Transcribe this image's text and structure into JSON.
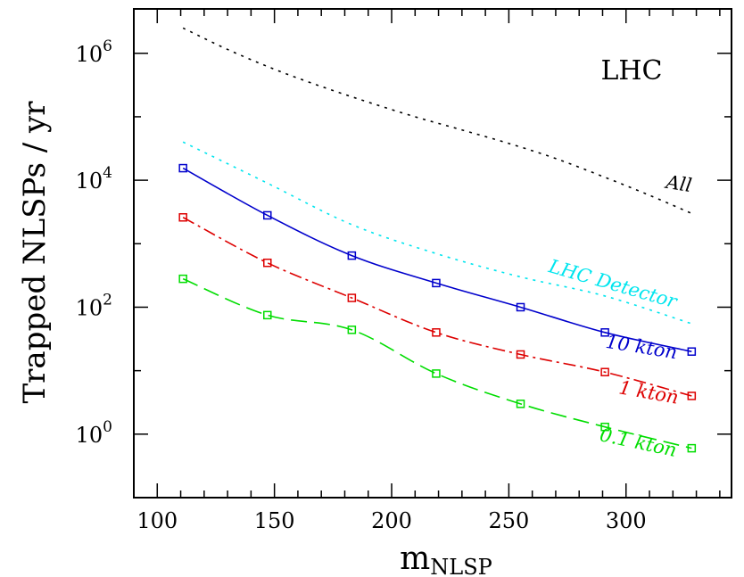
{
  "chart_data": {
    "type": "line",
    "title": "",
    "annotation": "LHC",
    "xlabel": "m",
    "xlabel_subscript": "NLSP",
    "ylabel": "Trapped NLSPs / yr",
    "xlim": [
      90,
      345
    ],
    "ylim": [
      0.1,
      5000000
    ],
    "yscale": "log",
    "grid": false,
    "x_ticks": [
      100,
      150,
      200,
      250,
      300
    ],
    "x_tick_labels": [
      "100",
      "150",
      "200",
      "250",
      "300"
    ],
    "y_ticks": [
      1,
      100,
      10000,
      1000000
    ],
    "y_tick_labels": [
      {
        "base": "10",
        "exp": "0"
      },
      {
        "base": "10",
        "exp": "2"
      },
      {
        "base": "10",
        "exp": "4"
      },
      {
        "base": "10",
        "exp": "6"
      }
    ],
    "series": [
      {
        "name": "All",
        "color": "#000000",
        "style": "dotted",
        "markers": false,
        "x": [
          111,
          130,
          150,
          170,
          190,
          210,
          230,
          250,
          270,
          290,
          310,
          328
        ],
        "values": [
          2500000,
          1150000,
          560000,
          300000,
          170000,
          100000,
          62000,
          38000,
          22000,
          11500,
          5800,
          3000
        ]
      },
      {
        "name": "LHC Detector",
        "color": "#00e5ee",
        "style": "dotted",
        "markers": false,
        "x": [
          111,
          147,
          183,
          219,
          255,
          291,
          328
        ],
        "values": [
          40000,
          9000,
          2000,
          700,
          300,
          150,
          55
        ]
      },
      {
        "name": "10 kton",
        "color": "#0000cc",
        "style": "solid",
        "markers": true,
        "x": [
          111,
          147,
          183,
          219,
          255,
          291,
          328
        ],
        "values": [
          15500,
          2800,
          650,
          240,
          100,
          40,
          20
        ]
      },
      {
        "name": "1 kton",
        "color": "#dd0000",
        "style": "dashdot",
        "markers": true,
        "x": [
          111,
          147,
          183,
          219,
          255,
          291,
          328
        ],
        "values": [
          2600,
          500,
          140,
          40,
          18,
          9.5,
          4
        ]
      },
      {
        "name": "0.1 kton",
        "color": "#00dd00",
        "style": "longdash",
        "markers": true,
        "x": [
          111,
          147,
          183,
          219,
          255,
          291,
          328
        ],
        "values": [
          280,
          75,
          44,
          9,
          3,
          1.3,
          0.6
        ]
      }
    ]
  }
}
